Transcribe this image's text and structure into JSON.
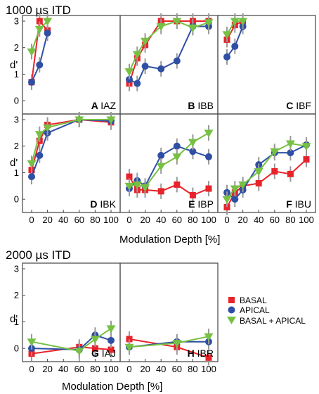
{
  "sections": [
    {
      "title": "1000 µs ITD",
      "xlabel": "Modulation Depth [%]"
    },
    {
      "title": "2000 µs ITD",
      "xlabel": "Modulation Depth [%]"
    }
  ],
  "ylabel": "d'",
  "legend": [
    {
      "label": "BASAL",
      "color": "#e8232a",
      "marker": "square"
    },
    {
      "label": "APICAL",
      "color": "#2f4fa5",
      "marker": "circle"
    },
    {
      "label": "BASAL + APICAL",
      "color": "#76c043",
      "marker": "triangle-down"
    }
  ],
  "chart_data": [
    {
      "type": "line",
      "panel": "A",
      "subject": "IAZ",
      "xlim": [
        0,
        100
      ],
      "ylim": [
        -0.5,
        3
      ],
      "yticks": [
        0,
        1,
        2,
        3
      ],
      "xticks": [],
      "series": [
        {
          "name": "BASAL",
          "x": [
            0,
            10,
            20
          ],
          "y": [
            0.7,
            3.0,
            2.65
          ]
        },
        {
          "name": "APICAL",
          "x": [
            0,
            10,
            20
          ],
          "y": [
            0.7,
            1.35,
            2.55
          ]
        },
        {
          "name": "BASAL + APICAL",
          "x": [
            0,
            10,
            20
          ],
          "y": [
            1.85,
            2.7,
            3.0
          ]
        }
      ]
    },
    {
      "type": "line",
      "panel": "B",
      "subject": "IBB",
      "xlim": [
        0,
        100
      ],
      "ylim": [
        -0.5,
        3
      ],
      "yticks": [],
      "xticks": [],
      "series": [
        {
          "name": "BASAL",
          "x": [
            0,
            10,
            20,
            40,
            60,
            80,
            100
          ],
          "y": [
            0.65,
            1.6,
            2.1,
            3.0,
            3.0,
            3.0,
            3.0
          ]
        },
        {
          "name": "APICAL",
          "x": [
            0,
            10,
            20,
            40,
            60,
            80,
            100
          ],
          "y": [
            0.8,
            0.65,
            1.3,
            1.2,
            1.5,
            2.8,
            2.8
          ]
        },
        {
          "name": "BASAL + APICAL",
          "x": [
            0,
            10,
            20,
            40,
            60,
            80,
            100
          ],
          "y": [
            1.1,
            1.75,
            2.25,
            2.8,
            3.0,
            2.75,
            2.95
          ]
        }
      ]
    },
    {
      "type": "line",
      "panel": "C",
      "subject": "IBF",
      "xlim": [
        0,
        100
      ],
      "ylim": [
        -0.5,
        3
      ],
      "yticks": [],
      "xticks": [],
      "series": [
        {
          "name": "BASAL",
          "x": [
            0,
            10,
            20
          ],
          "y": [
            2.3,
            2.85,
            3.0
          ]
        },
        {
          "name": "APICAL",
          "x": [
            0,
            10,
            20
          ],
          "y": [
            1.65,
            2.05,
            2.8
          ]
        },
        {
          "name": "BASAL + APICAL",
          "x": [
            0,
            10,
            20
          ],
          "y": [
            2.5,
            3.0,
            3.0
          ]
        }
      ]
    },
    {
      "type": "line",
      "panel": "D",
      "subject": "IBK",
      "xlim": [
        0,
        100
      ],
      "ylim": [
        -0.5,
        3
      ],
      "yticks": [
        0,
        1,
        2,
        3
      ],
      "xticks": [
        0,
        20,
        40,
        60,
        80,
        100
      ],
      "series": [
        {
          "name": "BASAL",
          "x": [
            0,
            10,
            20,
            60,
            100
          ],
          "y": [
            1.1,
            2.2,
            2.8,
            3.0,
            2.9
          ]
        },
        {
          "name": "APICAL",
          "x": [
            0,
            10,
            20,
            60,
            100
          ],
          "y": [
            0.85,
            1.65,
            2.5,
            3.0,
            2.95
          ]
        },
        {
          "name": "BASAL + APICAL",
          "x": [
            0,
            10,
            20,
            60,
            100
          ],
          "y": [
            1.35,
            2.45,
            2.7,
            3.0,
            3.0
          ]
        }
      ]
    },
    {
      "type": "line",
      "panel": "E",
      "subject": "IBP",
      "xlim": [
        0,
        100
      ],
      "ylim": [
        -0.5,
        3
      ],
      "yticks": [],
      "xticks": [
        0,
        20,
        40,
        60,
        80,
        100
      ],
      "series": [
        {
          "name": "BASAL",
          "x": [
            0,
            10,
            20,
            40,
            60,
            80,
            100
          ],
          "y": [
            0.85,
            0.35,
            0.35,
            0.3,
            0.55,
            0.15,
            0.4
          ]
        },
        {
          "name": "APICAL",
          "x": [
            0,
            10,
            20,
            40,
            60,
            80,
            100
          ],
          "y": [
            0.4,
            0.7,
            0.5,
            1.65,
            2.0,
            1.8,
            1.6
          ]
        },
        {
          "name": "BASAL + APICAL",
          "x": [
            0,
            10,
            20,
            40,
            60,
            80,
            100
          ],
          "y": [
            0.5,
            0.55,
            0.45,
            1.25,
            1.6,
            2.15,
            2.5
          ]
        }
      ]
    },
    {
      "type": "line",
      "panel": "F",
      "subject": "IBU",
      "xlim": [
        0,
        100
      ],
      "ylim": [
        -0.5,
        3
      ],
      "yticks": [],
      "xticks": [
        0,
        20,
        40,
        60,
        80,
        100
      ],
      "series": [
        {
          "name": "BASAL",
          "x": [
            0,
            10,
            20,
            40,
            60,
            80,
            100
          ],
          "y": [
            -0.3,
            0.25,
            0.5,
            0.6,
            1.05,
            0.95,
            1.5
          ]
        },
        {
          "name": "APICAL",
          "x": [
            0,
            10,
            20,
            40,
            60,
            80,
            100
          ],
          "y": [
            0.25,
            0.0,
            0.35,
            1.3,
            1.75,
            1.75,
            2.05
          ]
        },
        {
          "name": "BASAL + APICAL",
          "x": [
            0,
            10,
            20,
            40,
            60,
            80,
            100
          ],
          "y": [
            0.0,
            0.4,
            0.55,
            1.05,
            1.8,
            2.1,
            2.0
          ]
        }
      ]
    },
    {
      "type": "line",
      "panel": "G",
      "subject": "IAJ",
      "xlim": [
        0,
        100
      ],
      "ylim": [
        -0.5,
        3
      ],
      "yticks": [
        0,
        1,
        2,
        3
      ],
      "xticks": [
        0,
        20,
        40,
        60,
        80,
        100
      ],
      "series": [
        {
          "name": "BASAL",
          "x": [
            0,
            60,
            80,
            100
          ],
          "y": [
            -0.2,
            0.05,
            0.0,
            -0.05
          ]
        },
        {
          "name": "APICAL",
          "x": [
            0,
            60,
            80,
            100
          ],
          "y": [
            0.0,
            -0.05,
            0.5,
            0.3
          ]
        },
        {
          "name": "BASAL + APICAL",
          "x": [
            0,
            60,
            80,
            100
          ],
          "y": [
            0.25,
            -0.1,
            0.35,
            0.75
          ]
        }
      ]
    },
    {
      "type": "line",
      "panel": "H",
      "subject": "IBR",
      "xlim": [
        0,
        100
      ],
      "ylim": [
        -0.5,
        3
      ],
      "yticks": [],
      "xticks": [
        0,
        20,
        40,
        60,
        80,
        100
      ],
      "series": [
        {
          "name": "BASAL",
          "x": [
            0,
            60,
            100
          ],
          "y": [
            0.35,
            0.05,
            -0.35
          ]
        },
        {
          "name": "APICAL",
          "x": [
            0,
            60,
            100
          ],
          "y": [
            0.05,
            0.25,
            0.25
          ]
        },
        {
          "name": "BASAL + APICAL",
          "x": [
            0,
            60,
            100
          ],
          "y": [
            0.05,
            0.2,
            0.45
          ]
        }
      ]
    }
  ]
}
